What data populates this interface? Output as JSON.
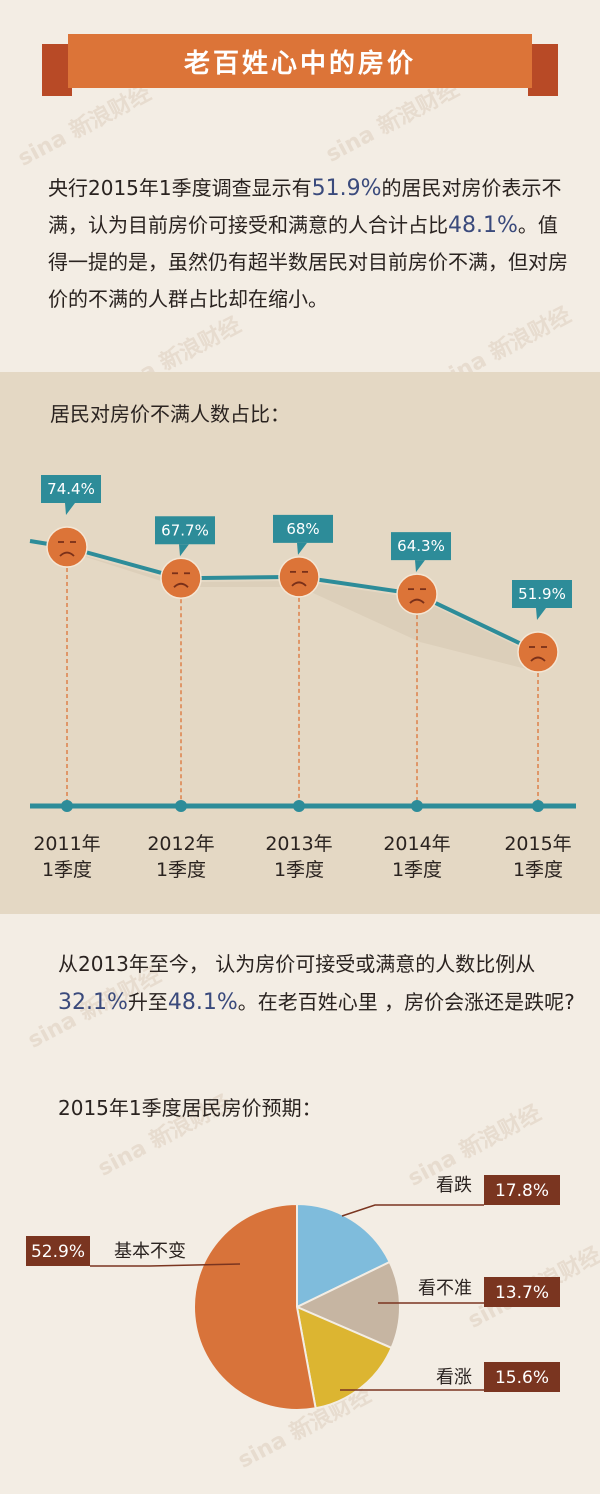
{
  "banner": {
    "title": "老百姓心中的房价"
  },
  "intro": {
    "parts": [
      "央行2015年1季度调查显示有",
      "51.9%",
      "的居民对房价表示不满，认为目前房价可接受和满意的人合计占比",
      "48.1%",
      "。值得一提的是，虽然仍有超半数居民对目前房价不满，但对房价的不满的人群占比却在缩小。"
    ]
  },
  "line_section": {
    "title": "居民对房价不满人数占比："
  },
  "middle": {
    "parts": [
      "从2013年至今， 认为房价可接受或满意的人数比例从",
      "32.1%",
      "升至",
      "48.1%",
      "。在老百姓心里 ，房价会涨还是跌呢?"
    ]
  },
  "pie_section": {
    "title": "2015年1季度居民房价预期："
  },
  "watermark": "sina 新浪财经",
  "colors": {
    "banner": "#dc7438",
    "banner_tail": "#b84a26",
    "line": "#2d8c99",
    "face": "#dc7438",
    "label_box": "#2d8c99",
    "pie_label": "#7a3520"
  },
  "chart_data": [
    {
      "type": "line",
      "title": "居民对房价不满人数占比：",
      "categories": [
        "2011年\n1季度",
        "2012年\n1季度",
        "2013年\n1季度",
        "2014年\n1季度",
        "2015年\n1季度"
      ],
      "values": [
        74.4,
        67.7,
        68,
        64.3,
        51.9
      ],
      "value_labels": [
        "74.4%",
        "67.7%",
        "68%",
        "64.3%",
        "51.9%"
      ],
      "unit": "%"
    },
    {
      "type": "pie",
      "title": "2015年1季度居民房价预期：",
      "slices": [
        {
          "label": "看跌",
          "value": 17.8,
          "display": "17.8%",
          "color": "#7fbcdc"
        },
        {
          "label": "看不准",
          "value": 13.7,
          "display": "13.7%",
          "color": "#c6b5a2"
        },
        {
          "label": "看涨",
          "value": 15.6,
          "display": "15.6%",
          "color": "#dcb531"
        },
        {
          "label": "基本不变",
          "value": 52.9,
          "display": "52.9%",
          "color": "#d8733a"
        }
      ]
    }
  ]
}
